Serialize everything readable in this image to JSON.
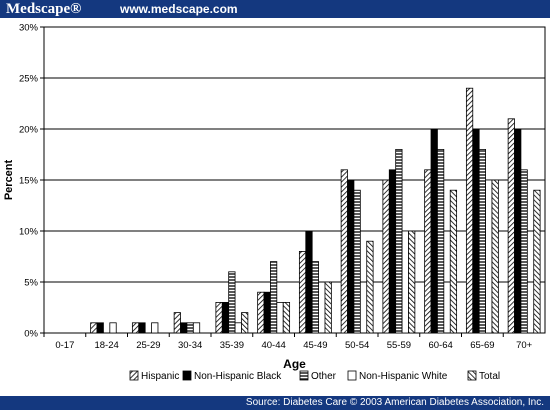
{
  "header": {
    "brand": "Medscape®",
    "site_url": "www.medscape.com"
  },
  "footer": {
    "source": "Source: Diabetes Care © 2003 American Diabetes Association, Inc."
  },
  "chart_data": {
    "type": "bar",
    "xlabel": "Age",
    "ylabel": "Percent",
    "ylim": [
      0,
      30
    ],
    "yticks": [
      "0%",
      "5%",
      "10%",
      "15%",
      "20%",
      "25%",
      "30%"
    ],
    "grid": true,
    "legend_position": "bottom",
    "categories": [
      "0-17",
      "18-24",
      "25-29",
      "30-34",
      "35-39",
      "40-44",
      "45-49",
      "50-54",
      "55-59",
      "60-64",
      "65-69",
      "70+"
    ],
    "series": [
      {
        "name": "Hispanic",
        "pattern": "diagonal",
        "values": [
          0,
          1,
          1,
          2,
          3,
          4,
          8,
          16,
          15,
          16,
          24,
          21
        ]
      },
      {
        "name": "Non-Hispanic Black",
        "pattern": "solid",
        "values": [
          0,
          1,
          1,
          1,
          3,
          4,
          10,
          15,
          16,
          20,
          20,
          20
        ]
      },
      {
        "name": "Other",
        "pattern": "horizontal",
        "values": [
          0,
          0,
          0,
          1,
          6,
          7,
          7,
          14,
          18,
          18,
          18,
          16
        ]
      },
      {
        "name": "Non-Hispanic White",
        "pattern": "empty",
        "values": [
          0,
          1,
          1,
          1,
          1,
          3,
          0,
          0,
          10,
          0,
          15,
          0
        ]
      },
      {
        "name": "Total",
        "pattern": "diagonal-reverse",
        "values": [
          0,
          0,
          0,
          0,
          2,
          3,
          5,
          9,
          10,
          14,
          15,
          14
        ]
      }
    ]
  }
}
